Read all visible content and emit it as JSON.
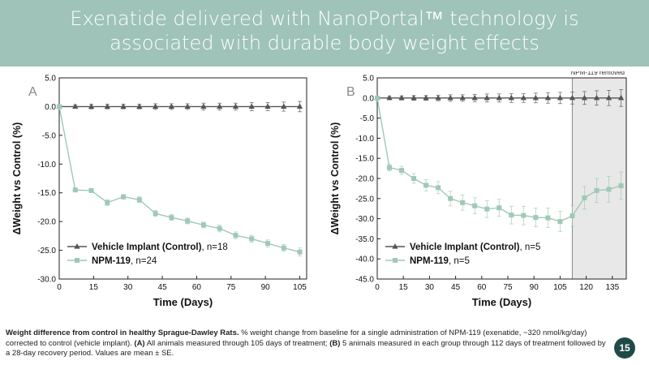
{
  "header": {
    "title_line1": "Exenatide delivered with NanoPortal™ technology is",
    "title_line2": "associated with durable body weight effects"
  },
  "caption": {
    "bold_lead": "Weight difference from control in healthy Sprague-Dawley Rats.",
    "text1": " % weight change from baseline for a single administration of NPM-119 (exenatide, ~320 nmol/kg/day) corrected to control (vehicle implant). ",
    "a_label": "(A)",
    "text2": " All animals measured through 105 days of treatment; ",
    "b_label": "(B)",
    "text3": " 5 animals measured in each group through 112 days of treatment followed by a 28-day recovery period. Values are mean ± SE."
  },
  "page_number": "15",
  "colors": {
    "banner": "#9fc3b8",
    "vehicle": "#555555",
    "npm": "#9fc9b6",
    "shade": "#e8e8e8",
    "badge": "#1f4a48"
  },
  "chart_data": [
    {
      "type": "line",
      "panel_label": "A",
      "xlabel": "Time (Days)",
      "ylabel": "ΔWeight vs Control (%)",
      "xlim": [
        0,
        108
      ],
      "ylim": [
        -30,
        5
      ],
      "xticks": [
        0,
        15,
        30,
        45,
        60,
        75,
        90,
        105
      ],
      "yticks": [
        5.0,
        0.0,
        -5.0,
        -10.0,
        -15.0,
        -20.0,
        -25.0,
        -30.0
      ],
      "series": [
        {
          "name": "Vehicle Implant (Control)",
          "legend_suffix": ", n=18",
          "marker": "triangle",
          "x": [
            0,
            7,
            14,
            21,
            28,
            35,
            42,
            49,
            56,
            63,
            70,
            77,
            84,
            91,
            98,
            105
          ],
          "y": [
            0,
            0,
            0,
            0,
            0,
            0,
            0,
            0,
            0,
            0,
            0,
            0,
            0,
            0,
            0,
            0
          ],
          "err": [
            0,
            0.3,
            0.4,
            0.4,
            0.4,
            0.4,
            0.5,
            0.5,
            0.5,
            0.6,
            0.6,
            0.6,
            0.7,
            0.7,
            0.8,
            0.9
          ]
        },
        {
          "name": "NPM-119",
          "legend_suffix": ", n=24",
          "marker": "square",
          "x": [
            0,
            7,
            14,
            21,
            28,
            35,
            42,
            49,
            56,
            63,
            70,
            77,
            84,
            91,
            98,
            105
          ],
          "y": [
            0,
            -14.5,
            -14.6,
            -16.7,
            -15.7,
            -16.2,
            -18.6,
            -19.3,
            -19.9,
            -20.6,
            -21.2,
            -22.4,
            -23.0,
            -23.8,
            -24.6,
            -25.3
          ],
          "err": [
            0,
            0.3,
            0.3,
            0.5,
            0.4,
            0.5,
            0.5,
            0.5,
            0.5,
            0.5,
            0.6,
            0.6,
            0.6,
            0.6,
            0.6,
            0.7
          ]
        }
      ]
    },
    {
      "type": "line",
      "panel_label": "B",
      "xlabel": "Time (Days)",
      "ylabel": "ΔWeight vs Control (%)",
      "xlim": [
        0,
        143
      ],
      "ylim": [
        -45,
        5
      ],
      "xticks": [
        0,
        15,
        30,
        45,
        60,
        75,
        90,
        105,
        120,
        135
      ],
      "yticks": [
        5.0,
        0.0,
        -5.0,
        -10.0,
        -15.0,
        -20.0,
        -25.0,
        -30.0,
        -35.0,
        -40.0,
        -45.0
      ],
      "shaded_region": {
        "from": 112,
        "to": 143,
        "label": "NPM-119 removed"
      },
      "series": [
        {
          "name": "Vehicle Implant (Control)",
          "legend_suffix": ", n=5",
          "marker": "triangle",
          "x": [
            0,
            7,
            14,
            21,
            28,
            35,
            42,
            49,
            56,
            63,
            70,
            77,
            84,
            91,
            98,
            105,
            112,
            119,
            126,
            133,
            140
          ],
          "y": [
            0,
            0,
            0,
            0,
            0,
            0,
            0,
            0,
            0,
            0,
            0,
            0,
            0,
            0,
            0,
            0,
            0,
            0,
            0,
            0,
            0
          ],
          "err": [
            0,
            0.4,
            0.5,
            0.6,
            0.6,
            0.7,
            0.8,
            0.8,
            0.9,
            1.0,
            1.0,
            1.1,
            1.1,
            1.2,
            1.3,
            1.4,
            1.5,
            1.6,
            1.8,
            1.9,
            2.1
          ]
        },
        {
          "name": "NPM-119",
          "legend_suffix": ", n=5",
          "marker": "square",
          "x": [
            0,
            7,
            14,
            21,
            28,
            35,
            42,
            49,
            56,
            63,
            70,
            77,
            84,
            91,
            98,
            105,
            112,
            119,
            126,
            133,
            140
          ],
          "y": [
            0,
            -17.3,
            -18.0,
            -20.0,
            -21.7,
            -22.3,
            -25.0,
            -26.0,
            -26.8,
            -27.6,
            -27.3,
            -29.1,
            -29.2,
            -29.7,
            -29.8,
            -30.7,
            -29.3,
            -24.8,
            -23.0,
            -22.7,
            -21.8
          ],
          "err": [
            0,
            0.8,
            1.0,
            1.2,
            1.4,
            1.5,
            1.8,
            1.9,
            2.0,
            2.1,
            2.1,
            2.2,
            2.3,
            2.3,
            2.4,
            2.5,
            2.6,
            2.8,
            3.0,
            3.2,
            3.4
          ]
        }
      ]
    }
  ]
}
